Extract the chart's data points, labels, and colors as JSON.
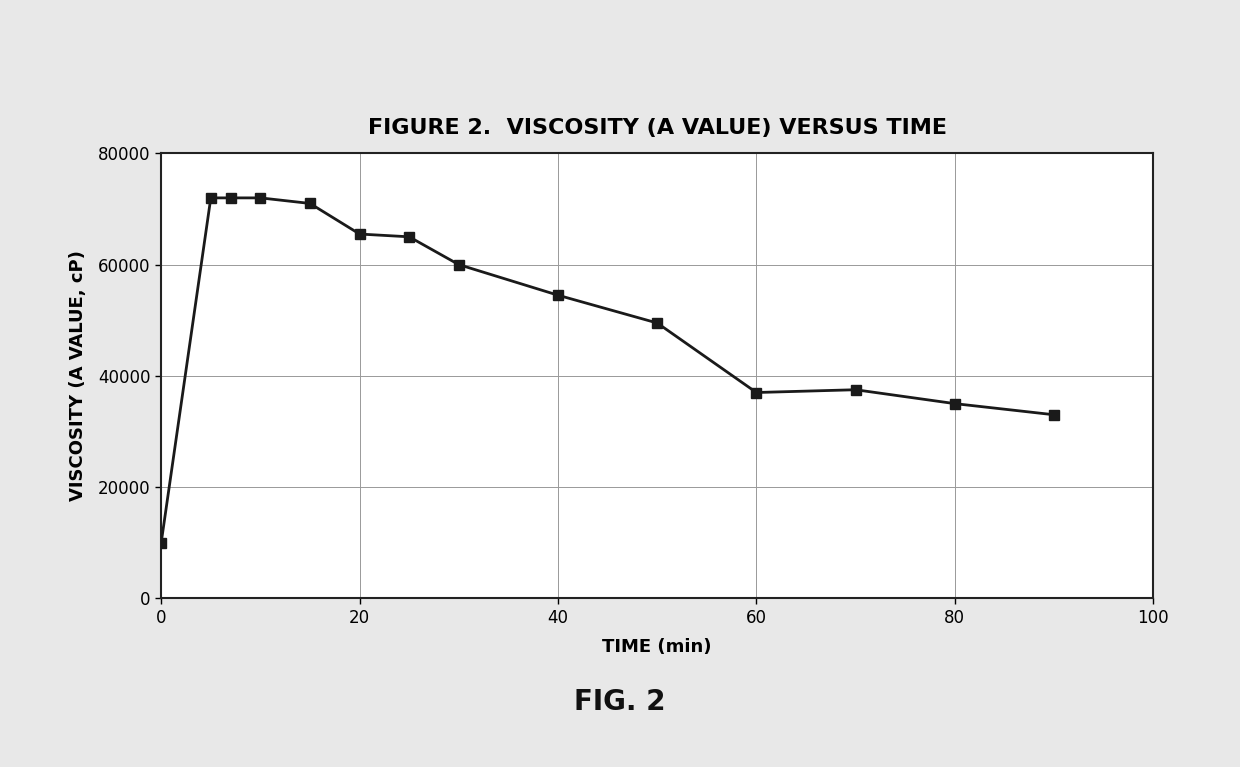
{
  "x": [
    0,
    5,
    7,
    10,
    15,
    20,
    25,
    30,
    40,
    50,
    60,
    70,
    80,
    90
  ],
  "y": [
    10000,
    72000,
    72000,
    72000,
    71000,
    65500,
    65000,
    60000,
    54500,
    49500,
    37000,
    37500,
    35000,
    33000
  ],
  "title": "FIGURE 2.  VISCOSITY (A VALUE) VERSUS TIME",
  "xlabel": "TIME (min)",
  "ylabel": "VISCOSITY (A VALUE, cP)",
  "xlim": [
    0,
    100
  ],
  "ylim": [
    0,
    80000
  ],
  "xticks": [
    0,
    20,
    40,
    60,
    80,
    100
  ],
  "yticks": [
    0,
    20000,
    40000,
    60000,
    80000
  ],
  "line_color": "#1a1a1a",
  "marker": "s",
  "marker_color": "#1a1a1a",
  "marker_size": 7,
  "line_width": 2.0,
  "fig_caption": "FIG. 2",
  "background_color": "#e8e8e8",
  "plot_bg_color": "#ffffff",
  "inner_bg_color": "#f0f0f0",
  "grid_color": "#999999",
  "title_fontsize": 16,
  "axis_label_fontsize": 13,
  "tick_fontsize": 12,
  "caption_fontsize": 20
}
